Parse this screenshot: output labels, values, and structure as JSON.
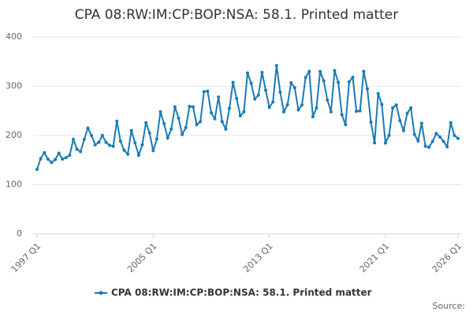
{
  "chart_data": {
    "type": "line",
    "title": "CPA 08:RW:IM:CP:BOP:NSA: 58.1. Printed matter",
    "credits": "Source:",
    "categories": [
      "1997 Q1",
      null,
      null,
      null,
      null,
      null,
      null,
      null,
      null,
      null,
      null,
      null,
      null,
      null,
      null,
      null,
      null,
      null,
      null,
      null,
      null,
      null,
      null,
      null,
      null,
      null,
      null,
      null,
      null,
      null,
      null,
      null,
      "2005 Q1",
      null,
      null,
      null,
      null,
      null,
      null,
      null,
      null,
      null,
      null,
      null,
      null,
      null,
      null,
      null,
      null,
      null,
      null,
      null,
      null,
      null,
      null,
      null,
      null,
      null,
      null,
      null,
      null,
      null,
      null,
      null,
      "2013 Q1",
      null,
      null,
      null,
      null,
      null,
      null,
      null,
      null,
      null,
      null,
      null,
      null,
      null,
      null,
      null,
      null,
      null,
      null,
      null,
      null,
      null,
      null,
      null,
      null,
      null,
      null,
      null,
      null,
      null,
      null,
      null,
      "2021 Q1",
      null,
      null,
      null,
      null,
      null,
      null,
      null,
      null,
      null,
      null,
      null,
      null,
      null,
      null,
      null,
      null,
      null,
      null,
      null,
      "2026 Q1"
    ],
    "series": [
      {
        "name": "CPA 08:RW:IM:CP:BOP:NSA: 58.1. Printed matter",
        "color": "#1a7ab5",
        "values": [
          131,
          153,
          165,
          152,
          145,
          151,
          164,
          152,
          155,
          160,
          192,
          172,
          167,
          192,
          215,
          200,
          181,
          186,
          200,
          186,
          180,
          178,
          229,
          188,
          170,
          162,
          210,
          185,
          160,
          181,
          226,
          205,
          169,
          193,
          248,
          224,
          195,
          213,
          258,
          235,
          202,
          216,
          259,
          258,
          222,
          228,
          289,
          290,
          246,
          234,
          278,
          228,
          213,
          255,
          308,
          275,
          240,
          248,
          327,
          306,
          274,
          282,
          328,
          292,
          257,
          268,
          342,
          288,
          248,
          262,
          307,
          297,
          252,
          262,
          318,
          330,
          238,
          256,
          330,
          311,
          272,
          248,
          332,
          308,
          242,
          222,
          309,
          318,
          249,
          250,
          330,
          295,
          227,
          185,
          285,
          263,
          185,
          200,
          256,
          262,
          230,
          210,
          245,
          256,
          202,
          189,
          225,
          178,
          176,
          188,
          204,
          197,
          188,
          177,
          226,
          200,
          194
        ]
      }
    ],
    "ylim": [
      0,
      400
    ],
    "yticks": [
      0,
      100,
      200,
      300,
      400
    ],
    "grid": true,
    "legend": "bottom"
  }
}
